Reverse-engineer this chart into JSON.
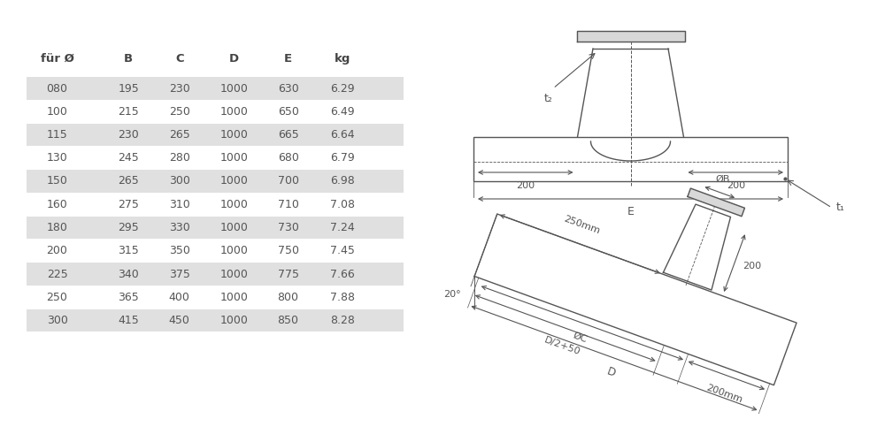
{
  "bg_color": "#f5f5f5",
  "table_headers": [
    "für Ø",
    "B",
    "C",
    "D",
    "E",
    "kg"
  ],
  "table_rows": [
    [
      "080",
      "195",
      "230",
      "1000",
      "630",
      "6.29"
    ],
    [
      "100",
      "215",
      "250",
      "1000",
      "650",
      "6.49"
    ],
    [
      "115",
      "230",
      "265",
      "1000",
      "665",
      "6.64"
    ],
    [
      "130",
      "245",
      "280",
      "1000",
      "680",
      "6.79"
    ],
    [
      "150",
      "265",
      "300",
      "1000",
      "700",
      "6.98"
    ],
    [
      "160",
      "275",
      "310",
      "1000",
      "710",
      "7.08"
    ],
    [
      "180",
      "295",
      "330",
      "1000",
      "730",
      "7.24"
    ],
    [
      "200",
      "315",
      "350",
      "1000",
      "750",
      "7.45"
    ],
    [
      "225",
      "340",
      "375",
      "1000",
      "775",
      "7.66"
    ],
    [
      "250",
      "365",
      "400",
      "1000",
      "800",
      "7.88"
    ],
    [
      "300",
      "415",
      "450",
      "1000",
      "850",
      "8.28"
    ]
  ],
  "shaded_rows": [
    0,
    2,
    4,
    6,
    8,
    10
  ],
  "row_shade_color": "#e0e0e0",
  "text_color": "#555555",
  "header_color": "#444444",
  "line_color": "#555555"
}
